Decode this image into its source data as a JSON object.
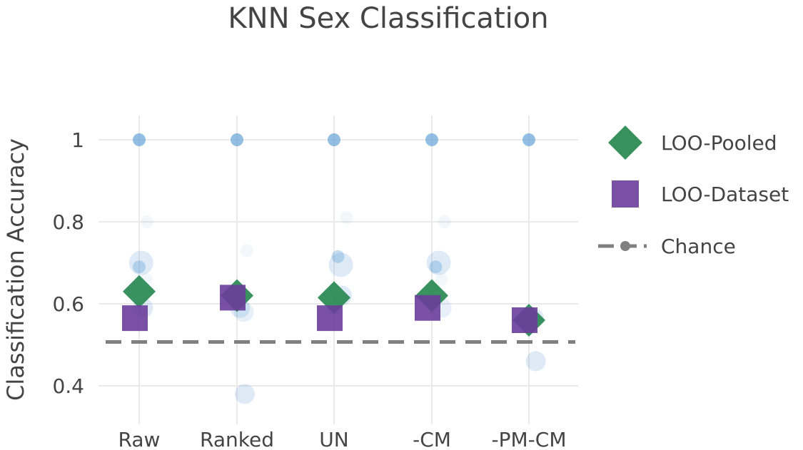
{
  "chart_data": {
    "type": "scatter",
    "title": "KNN Sex Classification",
    "xlabel": "",
    "ylabel": "Classification Accuracy",
    "categories": [
      "Raw",
      "Ranked",
      "UN",
      "-CM",
      "-PM-CM"
    ],
    "ylim": [
      0.33,
      1.08
    ],
    "yticks": [
      0.4,
      0.6,
      0.8,
      1
    ],
    "ytick_labels": [
      "0.4",
      "0.6",
      "0.8",
      "1"
    ],
    "grid": true,
    "legend_position": "right",
    "series": [
      {
        "name": "LOO-Pooled",
        "marker": "diamond",
        "color": "#2e8b57",
        "values": [
          0.63,
          0.62,
          0.615,
          0.62,
          0.56
        ]
      },
      {
        "name": "LOO-Dataset",
        "marker": "square",
        "color": "#6a3d9a",
        "values": [
          0.565,
          0.615,
          0.565,
          0.59,
          0.56
        ]
      },
      {
        "name": "Chance",
        "marker": "line",
        "color": "#808080",
        "values": [
          0.507,
          0.507,
          0.507,
          0.507,
          0.507
        ]
      }
    ],
    "individual_points": [
      {
        "category": "Raw",
        "offset": 0.0,
        "y": 1.0,
        "size": "small",
        "alpha": 0.65
      },
      {
        "category": "Raw",
        "offset": 0.08,
        "y": 0.8,
        "size": "small",
        "alpha": 0.08
      },
      {
        "category": "Raw",
        "offset": 0.02,
        "y": 0.7,
        "size": "large",
        "alpha": 0.2
      },
      {
        "category": "Raw",
        "offset": 0.0,
        "y": 0.69,
        "size": "small",
        "alpha": 0.35
      },
      {
        "category": "Raw",
        "offset": 0.07,
        "y": 0.66,
        "size": "small",
        "alpha": 0.08
      },
      {
        "category": "Raw",
        "offset": 0.04,
        "y": 0.59,
        "size": "medium",
        "alpha": 0.2
      },
      {
        "category": "Ranked",
        "offset": 0.0,
        "y": 1.0,
        "size": "small",
        "alpha": 0.65
      },
      {
        "category": "Ranked",
        "offset": 0.1,
        "y": 0.73,
        "size": "small",
        "alpha": 0.08
      },
      {
        "category": "Ranked",
        "offset": 0.03,
        "y": 0.59,
        "size": "medium",
        "alpha": 0.2
      },
      {
        "category": "Ranked",
        "offset": 0.07,
        "y": 0.58,
        "size": "medium",
        "alpha": 0.15
      },
      {
        "category": "Ranked",
        "offset": 0.08,
        "y": 0.38,
        "size": "medium",
        "alpha": 0.2
      },
      {
        "category": "UN",
        "offset": 0.0,
        "y": 1.0,
        "size": "small",
        "alpha": 0.65
      },
      {
        "category": "UN",
        "offset": 0.13,
        "y": 0.81,
        "size": "small",
        "alpha": 0.08
      },
      {
        "category": "UN",
        "offset": 0.04,
        "y": 0.715,
        "size": "small",
        "alpha": 0.35
      },
      {
        "category": "UN",
        "offset": 0.07,
        "y": 0.695,
        "size": "large",
        "alpha": 0.2
      },
      {
        "category": "UN",
        "offset": 0.08,
        "y": 0.62,
        "size": "medium",
        "alpha": 0.2
      },
      {
        "category": "UN",
        "offset": 0.05,
        "y": 0.61,
        "size": "small",
        "alpha": 0.1
      },
      {
        "category": "-CM",
        "offset": 0.0,
        "y": 1.0,
        "size": "small",
        "alpha": 0.65
      },
      {
        "category": "-CM",
        "offset": 0.13,
        "y": 0.8,
        "size": "small",
        "alpha": 0.08
      },
      {
        "category": "-CM",
        "offset": 0.07,
        "y": 0.7,
        "size": "large",
        "alpha": 0.2
      },
      {
        "category": "-CM",
        "offset": 0.04,
        "y": 0.69,
        "size": "small",
        "alpha": 0.35
      },
      {
        "category": "-CM",
        "offset": 0.1,
        "y": 0.66,
        "size": "small",
        "alpha": 0.08
      },
      {
        "category": "-CM",
        "offset": 0.1,
        "y": 0.59,
        "size": "medium",
        "alpha": 0.15
      },
      {
        "category": "-PM-CM",
        "offset": 0.0,
        "y": 1.0,
        "size": "small",
        "alpha": 0.65
      },
      {
        "category": "-PM-CM",
        "offset": 0.05,
        "y": 0.565,
        "size": "medium",
        "alpha": 0.2
      },
      {
        "category": "-PM-CM",
        "offset": 0.07,
        "y": 0.46,
        "size": "medium",
        "alpha": 0.2
      }
    ]
  }
}
